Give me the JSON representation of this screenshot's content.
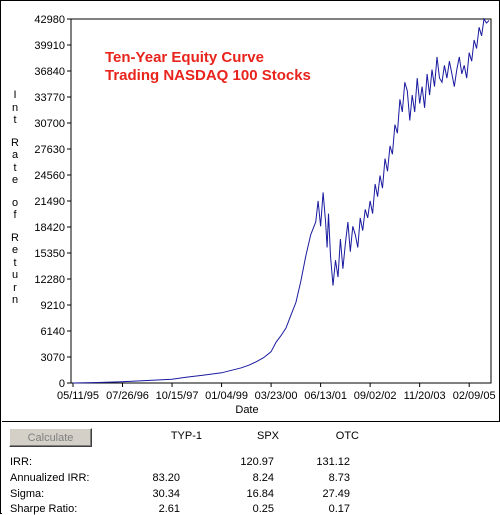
{
  "chart_data": {
    "type": "line",
    "title": "Ten-Year Equity Curve",
    "subtitle": "Trading NASDAQ 100 Stocks",
    "xlabel": "Date",
    "ylabel": "Int Rate of Return",
    "ylabel_letters": [
      "I",
      "n",
      "t",
      "",
      "R",
      "a",
      "t",
      "e",
      "",
      "o",
      "f",
      "",
      "R",
      "e",
      "t",
      "u",
      "r",
      "n"
    ],
    "ylim": [
      0,
      42980
    ],
    "yticks": [
      0,
      3070,
      6140,
      9210,
      12280,
      15350,
      18420,
      21490,
      24560,
      27630,
      30700,
      33770,
      36840,
      39910,
      42980
    ],
    "xtick_labels": [
      "05/11/95",
      "07/26/96",
      "10/15/97",
      "01/04/99",
      "03/23/00",
      "06/13/01",
      "09/02/02",
      "11/20/03",
      "02/09/05"
    ],
    "xlim": [
      0,
      8.4
    ],
    "line_color": "#1a1aa0",
    "title_color": "#e8241c",
    "series": [
      {
        "x": [
          0,
          0.5,
          1,
          1.5,
          2,
          2.3,
          2.6,
          3,
          3.2,
          3.4,
          3.55,
          3.7,
          3.85,
          4,
          4.1,
          4.2,
          4.3,
          4.4,
          4.5,
          4.6,
          4.7,
          4.8,
          4.9,
          4.95,
          5.0,
          5.05,
          5.1,
          5.13,
          5.16,
          5.2,
          5.25,
          5.3,
          5.35,
          5.4,
          5.45,
          5.5,
          5.55,
          5.6,
          5.65,
          5.7,
          5.75,
          5.8,
          5.85,
          5.9,
          5.95,
          6.0,
          6.05,
          6.1,
          6.15,
          6.2,
          6.25,
          6.3,
          6.35,
          6.4,
          6.45,
          6.5,
          6.55,
          6.6,
          6.65,
          6.7,
          6.75,
          6.8,
          6.85,
          6.9,
          6.95,
          7.0,
          7.05,
          7.1,
          7.15,
          7.2,
          7.25,
          7.3,
          7.35,
          7.4,
          7.45,
          7.5,
          7.55,
          7.6,
          7.65,
          7.7,
          7.75,
          7.8,
          7.85,
          7.9,
          7.95,
          8.0,
          8.05,
          8.1,
          8.15,
          8.2,
          8.25,
          8.3,
          8.35,
          8.4
        ],
        "y": [
          0,
          60,
          150,
          300,
          450,
          700,
          900,
          1200,
          1500,
          1800,
          2100,
          2500,
          3000,
          3700,
          4800,
          5600,
          6500,
          8000,
          9500,
          12000,
          15000,
          17500,
          19000,
          21500,
          18500,
          22500,
          19000,
          16000,
          20000,
          15000,
          11500,
          14500,
          12500,
          17000,
          13500,
          16500,
          19000,
          15500,
          18500,
          17500,
          16000,
          19500,
          18000,
          20500,
          19500,
          21500,
          20000,
          23500,
          22000,
          24500,
          23000,
          26500,
          25000,
          28000,
          27000,
          30500,
          29500,
          33500,
          32000,
          35500,
          34500,
          31000,
          34000,
          32000,
          36000,
          33000,
          35000,
          32500,
          36500,
          34000,
          37000,
          35000,
          38500,
          36000,
          35500,
          37500,
          36000,
          38000,
          36500,
          35000,
          37000,
          38500,
          36500,
          37500,
          36000,
          39000,
          38000,
          40500,
          39500,
          42000,
          41000,
          42980,
          42500,
          42800
        ]
      }
    ]
  },
  "stats": {
    "calculate_label": "Calculate",
    "columns": [
      "TYP-1",
      "SPX",
      "OTC"
    ],
    "rows": [
      {
        "label": "IRR:",
        "values": [
          "",
          "120.97",
          "131.12"
        ]
      },
      {
        "label": "Annualized IRR:",
        "values": [
          "83.20",
          "8.24",
          "8.73"
        ]
      },
      {
        "label": "Sigma:",
        "values": [
          "30.34",
          "16.84",
          "27.49"
        ]
      },
      {
        "label": "Sharpe Ratio:",
        "values": [
          "2.61",
          "0.25",
          "0.17"
        ]
      }
    ]
  }
}
